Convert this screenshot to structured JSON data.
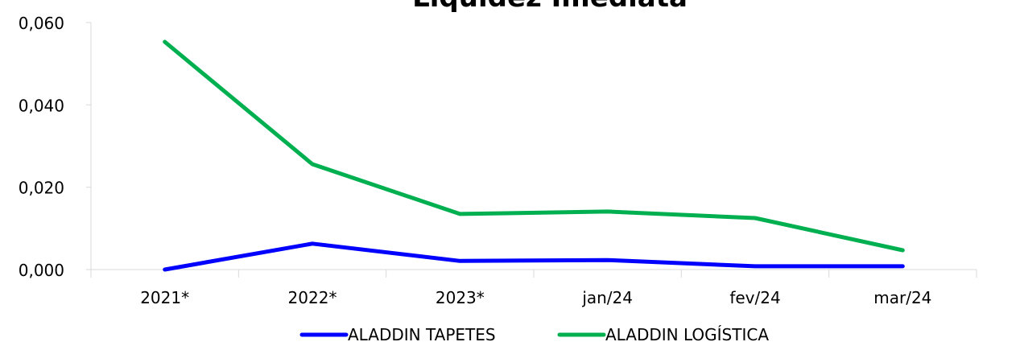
{
  "chart_data": {
    "type": "line",
    "title": "Liquidez Imediata",
    "categories": [
      "2021*",
      "2022*",
      "2023*",
      "jan/24",
      "fev/24",
      "mar/24"
    ],
    "series": [
      {
        "name": "ALADDIN TAPETES",
        "color": "#0000ff",
        "values": [
          0.0,
          0.0063,
          0.0021,
          0.0023,
          0.0008,
          0.0008
        ]
      },
      {
        "name": "ALADDIN LOGÍSTICA",
        "color": "#00b050",
        "values": [
          0.0553,
          0.0256,
          0.0135,
          0.0141,
          0.0125,
          0.0047
        ]
      }
    ],
    "ylim": [
      0,
      0.06
    ],
    "yticks": [
      {
        "value": 0,
        "label": "0,000"
      },
      {
        "value": 0.02,
        "label": "0,020"
      },
      {
        "value": 0.04,
        "label": "0,040"
      },
      {
        "value": 0.06,
        "label": "0,060"
      }
    ],
    "legend": "bottom",
    "grid": false
  }
}
